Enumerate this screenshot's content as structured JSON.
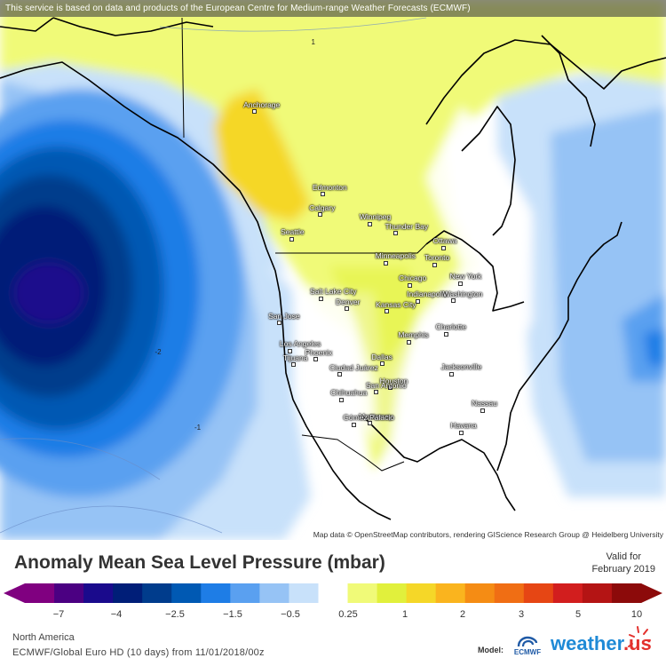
{
  "banner": "This service is based on data and products of the European Centre for Medium-range Weather Forecasts (ECMWF)",
  "attribution": "Map data © OpenStreetMap contributors, rendering GIScience Research Group @ Heidelberg University",
  "cities": [
    {
      "name": "Anchorage",
      "lon": -149.9,
      "lat": 61.2
    },
    {
      "name": "Edmonton",
      "lon": -113.5,
      "lat": 53.5
    },
    {
      "name": "Calgary",
      "lon": -114.1,
      "lat": 51.0
    },
    {
      "name": "Seattle",
      "lon": -122.3,
      "lat": 47.6
    },
    {
      "name": "Winnipeg",
      "lon": -97.1,
      "lat": 49.9
    },
    {
      "name": "Thunder Bay",
      "lon": -89.2,
      "lat": 48.4
    },
    {
      "name": "Minneapolis",
      "lon": -93.3,
      "lat": 45.0
    },
    {
      "name": "Ottawa",
      "lon": -75.7,
      "lat": 45.4
    },
    {
      "name": "Toronto",
      "lon": -79.4,
      "lat": 43.7
    },
    {
      "name": "Salt Lake City",
      "lon": -111.9,
      "lat": 40.8
    },
    {
      "name": "Chicago",
      "lon": -87.6,
      "lat": 41.9
    },
    {
      "name": "Denver",
      "lon": -105.0,
      "lat": 39.7
    },
    {
      "name": "Indianapolis",
      "lon": -86.2,
      "lat": 39.8
    },
    {
      "name": "New York",
      "lon": -74.0,
      "lat": 40.7
    },
    {
      "name": "Kansas City",
      "lon": -94.6,
      "lat": 39.1
    },
    {
      "name": "Washington",
      "lon": -77.0,
      "lat": 38.9
    },
    {
      "name": "San Jose",
      "lon": -121.9,
      "lat": 37.3
    },
    {
      "name": "Memphis",
      "lon": -90.0,
      "lat": 35.1
    },
    {
      "name": "Charlotte",
      "lon": -80.8,
      "lat": 35.2
    },
    {
      "name": "Los Angeles",
      "lon": -118.2,
      "lat": 34.1
    },
    {
      "name": "Phoenix",
      "lon": -112.1,
      "lat": 33.4
    },
    {
      "name": "Dallas",
      "lon": -96.8,
      "lat": 32.8
    },
    {
      "name": "Tijuana",
      "lon": -117.0,
      "lat": 32.5
    },
    {
      "name": "Ciudad Juárez",
      "lon": -106.4,
      "lat": 31.7
    },
    {
      "name": "Jacksonville",
      "lon": -81.7,
      "lat": 30.3
    },
    {
      "name": "Houston",
      "lon": -95.4,
      "lat": 29.8
    },
    {
      "name": "Chihuahua",
      "lon": -106.1,
      "lat": 28.6
    },
    {
      "name": "San Antonio",
      "lon": -98.5,
      "lat": 29.4
    },
    {
      "name": "Monterrey",
      "lon": -100.3,
      "lat": 25.7
    },
    {
      "name": "Nassau",
      "lon": -77.3,
      "lat": 25.1
    },
    {
      "name": "Gómez Palacio",
      "lon": -103.5,
      "lat": 25.6
    },
    {
      "name": "Havana",
      "lon": -82.4,
      "lat": 23.1
    }
  ],
  "isobar_labels": [
    {
      "text": "1",
      "lon": -133,
      "lat": 72
    },
    {
      "text": "-2",
      "lon": -148,
      "lat": 30
    },
    {
      "text": "-1",
      "lon": -135,
      "lat": 23
    }
  ],
  "legend": {
    "title": "Anomaly Mean Sea Level Pressure (mbar)",
    "valid_line1": "Valid for",
    "valid_line2": "February 2019",
    "ticks": [
      "−7",
      "−4",
      "−2.5",
      "−1.5",
      "−0.5",
      "0.25",
      "1",
      "2",
      "3",
      "5",
      "10"
    ],
    "colors": [
      "#800080",
      "#4b0082",
      "#1a0a8c",
      "#001e78",
      "#003c8c",
      "#0059b3",
      "#1e7de6",
      "#5aa0f0",
      "#96c3f5",
      "#c8e1fa",
      "#ffffff",
      "#f0fa78",
      "#e1f03c",
      "#f5d728",
      "#fab41e",
      "#f58c14",
      "#f06e14",
      "#e64614",
      "#d21e1e",
      "#b41414",
      "#8c0a0a"
    ],
    "region": "North America",
    "model_line": "ECMWF/Global Euro HD (10 days) from 11/01/2018/00z",
    "model_label": "Model:",
    "ecmwf_text": "ECMWF",
    "brand": "weather",
    "brand_tld": ".us"
  }
}
